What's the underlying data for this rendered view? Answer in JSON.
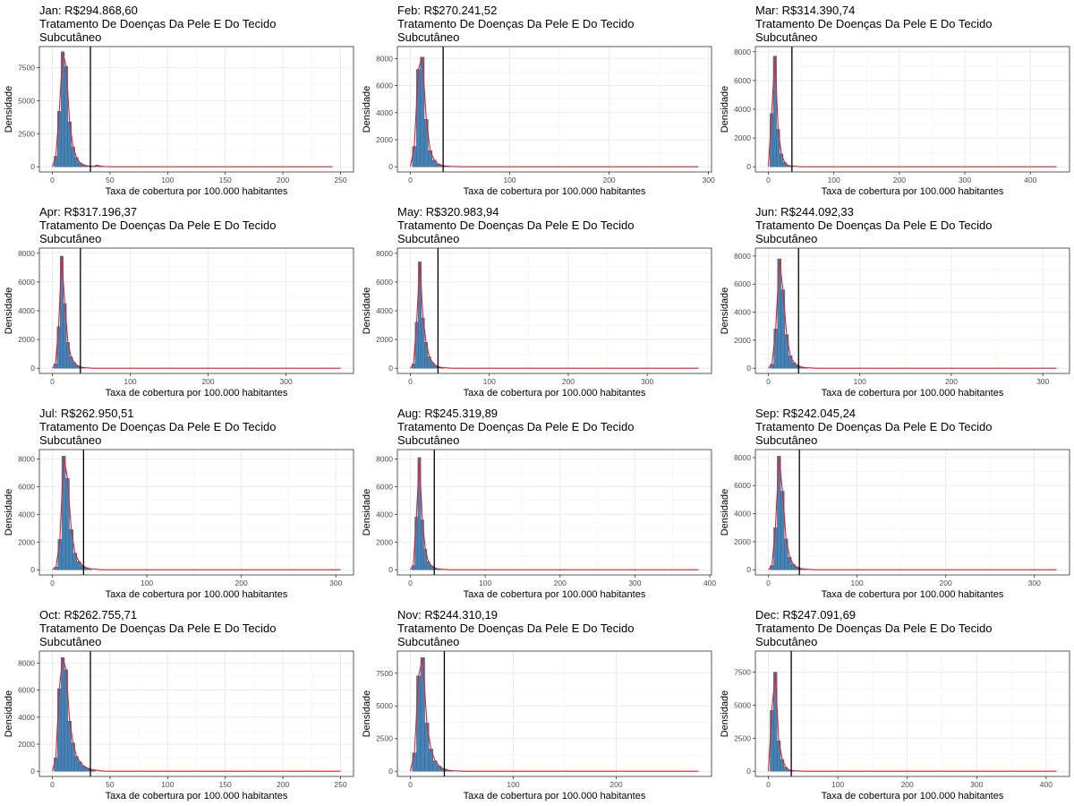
{
  "figure": {
    "ylabel": "Densidade",
    "xlabel": "Taxa de cobertura por 100.000 habitantes",
    "subtitle_1": "Tratamento De Doenças Da Pele E Do Tecido",
    "subtitle_2": "Subcutâneo",
    "colors": {
      "bar_fill": "#4682B4",
      "bar_edge": "#2f5f86",
      "density_curve": "#e0202a",
      "vline": "#000000",
      "grid": "#ebebeb",
      "panel_border": "#333333"
    }
  },
  "chart_data": [
    {
      "type": "bar",
      "title": "Jan: R$294.868,60",
      "xlim": [
        0,
        250
      ],
      "ylim": [
        0,
        8700
      ],
      "xticks": [
        0,
        50,
        100,
        150,
        200,
        250
      ],
      "yticks": [
        0,
        2500,
        5000,
        7500
      ],
      "ytick_labels": [
        "0",
        "2500",
        "5000",
        "7500"
      ],
      "x_max": 243,
      "vline": 33,
      "bins_x": [
        3,
        6,
        9,
        12,
        15,
        18,
        21,
        24,
        27,
        30,
        33,
        36,
        39,
        42,
        45
      ],
      "bins_y": [
        800,
        4200,
        8700,
        7600,
        3400,
        1500,
        700,
        300,
        150,
        80,
        50,
        30,
        120,
        40,
        20
      ]
    },
    {
      "type": "bar",
      "title": "Feb: R$270.241,52",
      "xlim": [
        0,
        290
      ],
      "ylim": [
        0,
        8500
      ],
      "xticks": [
        0,
        100,
        200,
        300
      ],
      "yticks": [
        0,
        2000,
        4000,
        6000,
        8000
      ],
      "ytick_labels": [
        "0",
        "2000",
        "4000",
        "6000",
        "8000"
      ],
      "x_max": 290,
      "vline": 33,
      "bins_x": [
        4,
        8,
        12,
        16,
        20,
        24,
        28,
        32,
        36,
        40
      ],
      "bins_y": [
        1500,
        7200,
        8100,
        3500,
        1200,
        500,
        200,
        100,
        50,
        30
      ]
    },
    {
      "type": "bar",
      "title": "Mar: R$314.390,74",
      "xlim": [
        0,
        440
      ],
      "ylim": [
        0,
        8000
      ],
      "xticks": [
        0,
        100,
        200,
        300,
        400
      ],
      "yticks": [
        0,
        2000,
        4000,
        6000,
        8000
      ],
      "ytick_labels": [
        "0",
        "2000",
        "4000",
        "6000",
        "8000"
      ],
      "x_max": 440,
      "vline": 36,
      "bins_x": [
        5,
        10,
        15,
        20,
        25,
        30,
        35
      ],
      "bins_y": [
        3700,
        7700,
        2600,
        900,
        300,
        100,
        50
      ]
    },
    {
      "type": "bar",
      "title": "Apr: R$317.196,37",
      "xlim": [
        0,
        370
      ],
      "ylim": [
        0,
        8000
      ],
      "xticks": [
        0,
        100,
        200,
        300
      ],
      "yticks": [
        0,
        2000,
        4000,
        6000,
        8000
      ],
      "ytick_labels": [
        "0",
        "2000",
        "4000",
        "6000",
        "8000"
      ],
      "x_max": 370,
      "vline": 36,
      "bins_x": [
        4,
        8,
        12,
        16,
        20,
        24,
        28,
        32,
        36,
        40
      ],
      "bins_y": [
        300,
        2900,
        7800,
        4500,
        1800,
        800,
        400,
        200,
        100,
        50
      ]
    },
    {
      "type": "bar",
      "title": "May: R$320.983,94",
      "xlim": [
        0,
        365
      ],
      "ylim": [
        0,
        8000
      ],
      "xticks": [
        0,
        100,
        200,
        300
      ],
      "yticks": [
        0,
        2000,
        4000,
        6000,
        8000
      ],
      "ytick_labels": [
        "0",
        "2000",
        "4000",
        "6000",
        "8000"
      ],
      "x_max": 365,
      "vline": 35,
      "bins_x": [
        4,
        8,
        12,
        16,
        20,
        24,
        28,
        32,
        36,
        40
      ],
      "bins_y": [
        300,
        3200,
        7400,
        3500,
        1800,
        800,
        400,
        200,
        100,
        50
      ]
    },
    {
      "type": "bar",
      "title": "Jun: R$244.092,33",
      "xlim": [
        0,
        315
      ],
      "ylim": [
        0,
        8200
      ],
      "xticks": [
        0,
        100,
        200,
        300
      ],
      "yticks": [
        0,
        2000,
        4000,
        6000,
        8000
      ],
      "ytick_labels": [
        "0",
        "2000",
        "4000",
        "6000",
        "8000"
      ],
      "x_max": 315,
      "vline": 33,
      "bins_x": [
        4,
        8,
        12,
        16,
        20,
        24,
        28,
        32,
        36,
        40
      ],
      "bins_y": [
        300,
        2800,
        7800,
        5600,
        2400,
        900,
        400,
        200,
        100,
        50
      ]
    },
    {
      "type": "bar",
      "title": "Jul: R$262.950,51",
      "xlim": [
        0,
        305
      ],
      "ylim": [
        0,
        8300
      ],
      "xticks": [
        0,
        100,
        200,
        300
      ],
      "yticks": [
        0,
        2000,
        4000,
        6000,
        8000
      ],
      "ytick_labels": [
        "0",
        "2000",
        "4000",
        "6000",
        "8000"
      ],
      "x_max": 305,
      "vline": 33,
      "bins_x": [
        4,
        8,
        12,
        16,
        20,
        24,
        28,
        32,
        36,
        40
      ],
      "bins_y": [
        200,
        2200,
        8200,
        6600,
        2900,
        1200,
        600,
        300,
        150,
        80
      ]
    },
    {
      "type": "bar",
      "title": "Aug: R$245.319,89",
      "xlim": [
        0,
        385
      ],
      "ylim": [
        0,
        8300
      ],
      "xticks": [
        0,
        100,
        200,
        300,
        400
      ],
      "yticks": [
        0,
        2000,
        4000,
        6000,
        8000
      ],
      "ytick_labels": [
        "0",
        "2000",
        "4000",
        "6000",
        "8000"
      ],
      "x_max": 385,
      "vline": 32,
      "bins_x": [
        4,
        8,
        12,
        16,
        20,
        24,
        28,
        32,
        36,
        40
      ],
      "bins_y": [
        300,
        3800,
        8100,
        3600,
        1500,
        600,
        300,
        150,
        80,
        40
      ]
    },
    {
      "type": "bar",
      "title": "Sep: R$242.045,24",
      "xlim": [
        0,
        325
      ],
      "ylim": [
        0,
        8200
      ],
      "xticks": [
        0,
        100,
        200,
        300
      ],
      "yticks": [
        0,
        2000,
        4000,
        6000,
        8000
      ],
      "ytick_labels": [
        "0",
        "2000",
        "4000",
        "6000",
        "8000"
      ],
      "x_max": 325,
      "vline": 35,
      "bins_x": [
        4,
        8,
        12,
        16,
        20,
        24,
        28,
        32,
        36,
        40
      ],
      "bins_y": [
        300,
        3000,
        8100,
        5600,
        2200,
        900,
        400,
        200,
        100,
        50
      ]
    },
    {
      "type": "bar",
      "title": "Oct: R$262.755,71",
      "xlim": [
        0,
        250
      ],
      "ylim": [
        0,
        8500
      ],
      "xticks": [
        0,
        50,
        100,
        150,
        200,
        250
      ],
      "yticks": [
        0,
        2000,
        4000,
        6000,
        8000
      ],
      "ytick_labels": [
        "0",
        "2000",
        "4000",
        "6000",
        "8000"
      ],
      "x_max": 250,
      "vline": 33,
      "bins_x": [
        3,
        6,
        9,
        12,
        15,
        18,
        21,
        24,
        27,
        30,
        33,
        36
      ],
      "bins_y": [
        1000,
        6100,
        8400,
        7500,
        3700,
        2100,
        1100,
        700,
        400,
        250,
        150,
        100
      ]
    },
    {
      "type": "bar",
      "title": "Nov: R$244.310,19",
      "xlim": [
        0,
        280
      ],
      "ylim": [
        0,
        8800
      ],
      "xticks": [
        0,
        100,
        200
      ],
      "yticks": [
        0,
        2500,
        5000,
        7500
      ],
      "ytick_labels": [
        "0",
        "2500",
        "5000",
        "7500"
      ],
      "x_max": 280,
      "vline": 33,
      "bins_x": [
        4,
        8,
        12,
        16,
        20,
        24,
        28,
        32,
        36,
        40
      ],
      "bins_y": [
        1400,
        7300,
        8700,
        3700,
        1700,
        800,
        400,
        200,
        100,
        50
      ]
    },
    {
      "type": "bar",
      "title": "Dec: R$247.091,69",
      "xlim": [
        0,
        415
      ],
      "ylim": [
        0,
        8700
      ],
      "xticks": [
        0,
        100,
        200,
        300,
        400
      ],
      "yticks": [
        0,
        2500,
        5000,
        7500
      ],
      "ytick_labels": [
        "0",
        "2500",
        "5000",
        "7500"
      ],
      "x_max": 415,
      "vline": 33,
      "bins_x": [
        5,
        10,
        15,
        20,
        25,
        30,
        35
      ],
      "bins_y": [
        4600,
        7500,
        2300,
        900,
        300,
        100,
        50
      ]
    }
  ]
}
